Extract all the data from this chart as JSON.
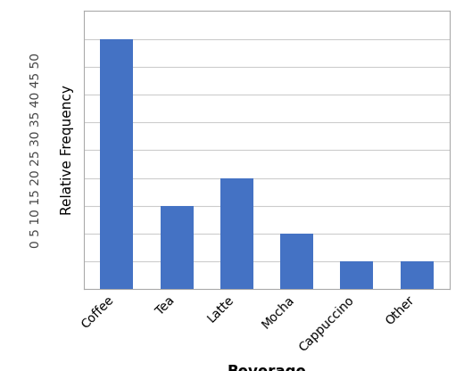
{
  "categories": [
    "Coffee",
    "Tea",
    "Latte",
    "Mocha",
    "Cappuccino",
    "Other"
  ],
  "values": [
    45,
    15,
    20,
    10,
    5,
    5
  ],
  "bar_color": "#4472C4",
  "xlabel": "Beverage",
  "ylabel": "Relative Frequency",
  "yticks": [
    0,
    5,
    10,
    15,
    20,
    25,
    30,
    35,
    40,
    45,
    50
  ],
  "ylim": [
    0,
    50
  ],
  "background_color": "#ffffff",
  "xlabel_fontsize": 12,
  "ylabel_fontsize": 11,
  "tick_fontsize": 10,
  "bar_width": 0.55,
  "grid_color": "#cccccc",
  "border_color": "#aaaaaa",
  "ytick_label": "0 5 10 15 20 25 30 35 40 45 50"
}
